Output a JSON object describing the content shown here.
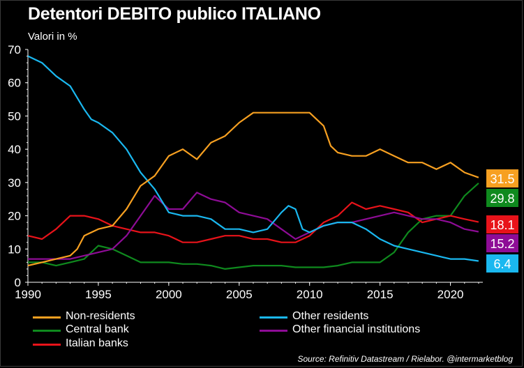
{
  "header": {
    "title": "Detentori DEBITO publico ITALIANO",
    "subtitle": "Valori in %"
  },
  "source": "Source: Refinitiv Datastream / Rielabor. @intermarketblog",
  "chart_data": {
    "type": "line",
    "title": "Detentori DEBITO publico ITALIANO",
    "ylabel": "Valori in %",
    "xlim": [
      1990,
      2022.3
    ],
    "ylim": [
      0,
      70
    ],
    "x_ticks": [
      "1990",
      "1995",
      "2000",
      "2005",
      "2010",
      "2015",
      "2020"
    ],
    "y_ticks": [
      "0",
      "10",
      "20",
      "30",
      "40",
      "50",
      "60",
      "70"
    ],
    "grid": false,
    "legend_position": "bottom",
    "series": [
      {
        "name": "Non-residents",
        "color": "#f7a021",
        "end_label": "31.5",
        "x": [
          1990,
          1991,
          1992,
          1993,
          1993.5,
          1994,
          1995,
          1996,
          1997,
          1998,
          1999,
          2000,
          2001,
          2002,
          2003,
          2004,
          2005,
          2006,
          2007,
          2008,
          2009,
          2010,
          2011,
          2011.5,
          2012,
          2013,
          2014,
          2015,
          2016,
          2017,
          2018,
          2019,
          2020,
          2021,
          2022
        ],
        "y": [
          5,
          6,
          7,
          8,
          10,
          14,
          16,
          17,
          22,
          29,
          32,
          38,
          40,
          37,
          42,
          44,
          48,
          51,
          51,
          51,
          51,
          51,
          47,
          41,
          39,
          38,
          38,
          40,
          38,
          36,
          36,
          34,
          36,
          33,
          31.5
        ]
      },
      {
        "name": "Other residents",
        "color": "#1ab8f0",
        "end_label": "6.4",
        "x": [
          1990,
          1991,
          1992,
          1993,
          1994,
          1994.5,
          1995,
          1996,
          1997,
          1998,
          1999,
          2000,
          2001,
          2002,
          2003,
          2004,
          2005,
          2006,
          2007,
          2008,
          2008.5,
          2009,
          2009.5,
          2010,
          2011,
          2012,
          2013,
          2014,
          2015,
          2016,
          2017,
          2018,
          2019,
          2020,
          2021,
          2022
        ],
        "y": [
          68,
          66,
          62,
          59,
          52,
          49,
          48,
          45,
          40,
          33,
          28,
          21,
          20,
          20,
          19,
          16,
          16,
          15,
          16,
          21,
          23,
          22,
          16,
          15,
          17,
          18,
          18,
          16,
          13,
          11,
          10,
          9,
          8,
          7,
          7,
          6.4
        ]
      },
      {
        "name": "Central bank",
        "color": "#0f8a1e",
        "end_label": "29.8",
        "x": [
          1990,
          1991,
          1992,
          1993,
          1994,
          1995,
          1996,
          1997,
          1998,
          1999,
          2000,
          2001,
          2002,
          2003,
          2004,
          2005,
          2006,
          2007,
          2008,
          2009,
          2010,
          2011,
          2012,
          2013,
          2014,
          2015,
          2016,
          2017,
          2018,
          2019,
          2020,
          2021,
          2022
        ],
        "y": [
          6,
          6,
          5,
          6,
          7,
          11,
          10,
          8,
          6,
          6,
          6,
          5.5,
          5.5,
          5,
          4,
          4.5,
          5,
          5,
          5,
          4.5,
          4.5,
          4.5,
          5,
          6,
          6,
          6,
          9,
          15,
          19,
          20,
          20,
          26,
          29.8
        ]
      },
      {
        "name": "Other financial institutions",
        "color": "#8e0c96",
        "end_label": "15.2",
        "x": [
          1990,
          1991,
          1992,
          1993,
          1994,
          1995,
          1996,
          1997,
          1998,
          1999,
          2000,
          2001,
          2002,
          2003,
          2004,
          2005,
          2006,
          2007,
          2008,
          2009,
          2010,
          2011,
          2012,
          2013,
          2014,
          2015,
          2016,
          2017,
          2018,
          2019,
          2020,
          2021,
          2022
        ],
        "y": [
          7,
          7,
          7,
          7,
          8,
          9,
          10,
          14,
          20,
          26,
          22,
          22,
          27,
          25,
          24,
          21,
          20,
          19,
          16,
          13,
          15,
          17,
          18,
          18,
          19,
          20,
          21,
          20,
          19,
          19,
          18,
          16,
          15.2
        ]
      },
      {
        "name": "Italian banks",
        "color": "#e8131a",
        "end_label": "18.1",
        "x": [
          1990,
          1991,
          1992,
          1993,
          1994,
          1995,
          1996,
          1997,
          1998,
          1999,
          2000,
          2001,
          2002,
          2003,
          2004,
          2005,
          2006,
          2007,
          2008,
          2009,
          2010,
          2011,
          2012,
          2013,
          2014,
          2015,
          2016,
          2017,
          2018,
          2019,
          2020,
          2021,
          2022
        ],
        "y": [
          14,
          13,
          16,
          20,
          20,
          19,
          17,
          16,
          15,
          15,
          14,
          12,
          12,
          13,
          14,
          14,
          13,
          13,
          12,
          12,
          14,
          18,
          20,
          24,
          22,
          23,
          22,
          21,
          18,
          19,
          20,
          19,
          18.1
        ]
      }
    ]
  }
}
